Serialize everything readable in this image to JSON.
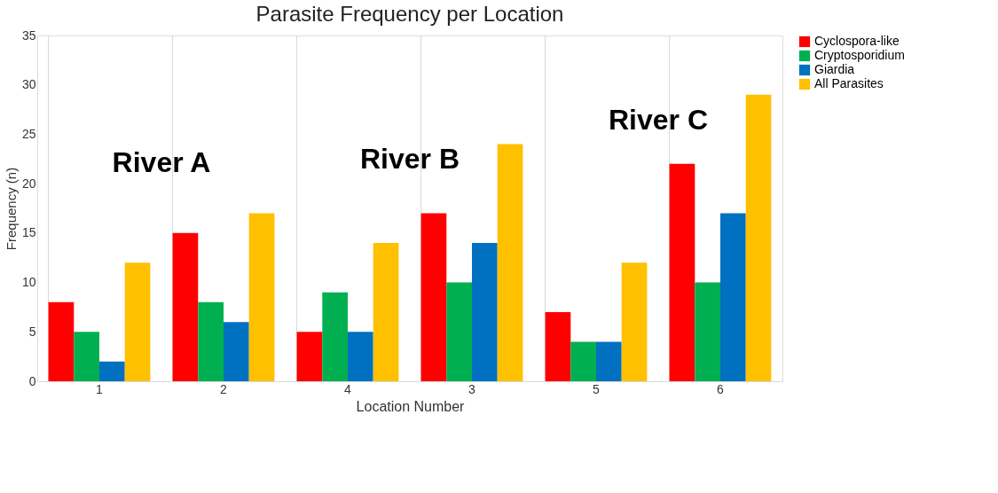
{
  "chart_data": {
    "type": "bar",
    "title": "Parasite Frequency per Location",
    "xlabel": "Location Number",
    "ylabel": "Frequency (n)",
    "categories": [
      "1",
      "2",
      "4",
      "3",
      "5",
      "6"
    ],
    "series": [
      {
        "name": "Cyclospora-like",
        "color": "#ff0000",
        "values": [
          8,
          15,
          5,
          17,
          7,
          22
        ]
      },
      {
        "name": "Cryptosporidium",
        "color": "#00b050",
        "values": [
          5,
          8,
          9,
          10,
          4,
          10
        ]
      },
      {
        "name": "Giardia",
        "color": "#0070c0",
        "values": [
          2,
          6,
          5,
          14,
          4,
          17
        ]
      },
      {
        "name": "All Parasites",
        "color": "#ffc000",
        "values": [
          12,
          17,
          14,
          24,
          12,
          29
        ]
      }
    ],
    "ylim": [
      0,
      35
    ],
    "yticks": [
      0,
      5,
      10,
      15,
      20,
      25,
      30,
      35
    ],
    "annotations": [
      "River A",
      "River B",
      "River C"
    ],
    "grid": "x",
    "legend": "right"
  }
}
